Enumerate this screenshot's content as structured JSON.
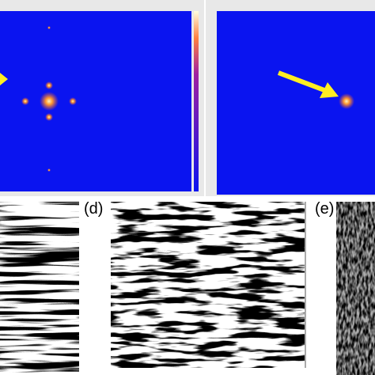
{
  "panels": {
    "d": {
      "label": "(d)"
    },
    "e": {
      "label": "(e)"
    }
  }
}
